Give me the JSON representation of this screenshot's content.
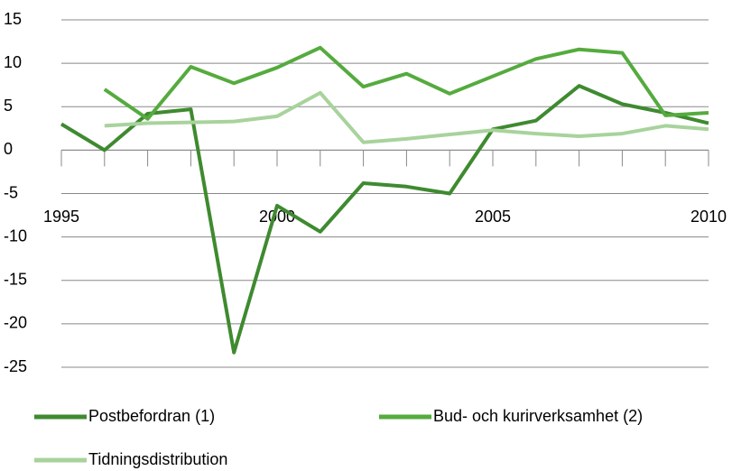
{
  "chart_data": {
    "type": "line",
    "x": [
      1995,
      1996,
      1997,
      1998,
      1999,
      2000,
      2001,
      2002,
      2003,
      2004,
      2005,
      2006,
      2007,
      2008,
      2009,
      2010
    ],
    "series": [
      {
        "name": "Postbefordran (1)",
        "color": "#3f8a30",
        "values": [
          3.0,
          0.0,
          4.2,
          4.7,
          -23.3,
          -6.4,
          -9.4,
          -3.8,
          -4.2,
          -5.0,
          2.4,
          3.4,
          7.4,
          5.3,
          4.3,
          3.1
        ]
      },
      {
        "name": "Bud- och kurirverksamhet (2)",
        "color": "#55ab3e",
        "values": [
          null,
          7.0,
          3.6,
          9.6,
          7.7,
          9.5,
          11.8,
          7.3,
          8.8,
          6.5,
          8.5,
          10.5,
          11.6,
          11.2,
          4.0,
          4.3
        ]
      },
      {
        "name": "Tidningsdistribution",
        "color": "#a8d39c",
        "values": [
          null,
          2.8,
          3.1,
          3.2,
          3.3,
          3.9,
          6.6,
          0.9,
          1.3,
          1.8,
          2.3,
          1.9,
          1.6,
          1.9,
          2.8,
          2.4
        ]
      }
    ],
    "xlim": [
      1995,
      2010
    ],
    "xticks": [
      1995,
      2000,
      2005,
      2010
    ],
    "ylim": [
      -25,
      15
    ],
    "yticks": [
      -25,
      -20,
      -15,
      -10,
      -5,
      0,
      5,
      10,
      15
    ],
    "grid": true,
    "legend": "bottom"
  }
}
